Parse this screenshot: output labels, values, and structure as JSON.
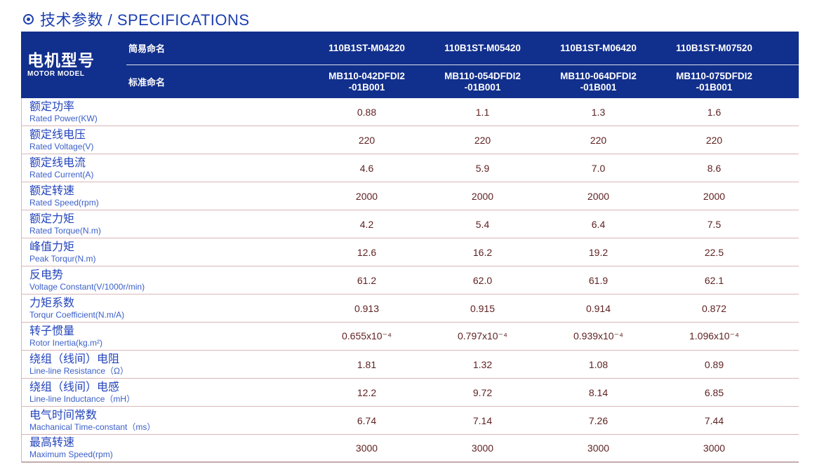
{
  "page": {
    "title": "技术参数 / SPECIFICATIONS"
  },
  "colors": {
    "header_background": "#112f8c",
    "title_blue": "#1d3fb0",
    "label_blue": "#2344bd",
    "value_maroon": "#5e1f1f",
    "divider_pink": "#d9b6b6"
  },
  "table": {
    "motor_model_cn": "电机型号",
    "motor_model_en": "MOTOR MODEL",
    "simple_name_label": "简易命名",
    "standard_name_label": "标准命名",
    "columns": [
      {
        "simple": "110B1ST-M04220",
        "std_line1": "MB110-042DFDI2",
        "std_line2": "-01B001"
      },
      {
        "simple": "110B1ST-M05420",
        "std_line1": "MB110-054DFDI2",
        "std_line2": "-01B001"
      },
      {
        "simple": "110B1ST-M06420",
        "std_line1": "MB110-064DFDI2",
        "std_line2": "-01B001"
      },
      {
        "simple": "110B1ST-M07520",
        "std_line1": "MB110-075DFDI2",
        "std_line2": "-01B001"
      }
    ],
    "rows": [
      {
        "cn": "额定功率",
        "en": "Rated Power(KW)",
        "values": [
          "0.88",
          "1.1",
          "1.3",
          "1.6"
        ]
      },
      {
        "cn": "额定线电压",
        "en": "Rated Voltage(V)",
        "values": [
          "220",
          "220",
          "220",
          "220"
        ]
      },
      {
        "cn": "额定线电流",
        "en": "Rated Current(A)",
        "values": [
          "4.6",
          "5.9",
          "7.0",
          "8.6"
        ]
      },
      {
        "cn": "额定转速",
        "en": "Rated Speed(rpm)",
        "values": [
          "2000",
          "2000",
          "2000",
          "2000"
        ]
      },
      {
        "cn": "额定力矩",
        "en": "Rated Torque(N.m)",
        "values": [
          "4.2",
          "5.4",
          "6.4",
          "7.5"
        ]
      },
      {
        "cn": "峰值力矩",
        "en": "Peak Torqur(N.m)",
        "values": [
          "12.6",
          "16.2",
          "19.2",
          "22.5"
        ]
      },
      {
        "cn": "反电势",
        "en": "Voltage Constant(V/1000r/min)",
        "values": [
          "61.2",
          "62.0",
          "61.9",
          "62.1"
        ]
      },
      {
        "cn": "力矩系数",
        "en": "Torqur Coefficient(N.m/A)",
        "values": [
          "0.913",
          "0.915",
          "0.914",
          "0.872"
        ]
      },
      {
        "cn": "转子惯量",
        "en": "Rotor Inertia(kg.m²)",
        "values": [
          "0.655x10⁻⁴",
          "0.797x10⁻⁴",
          "0.939x10⁻⁴",
          "1.096x10⁻⁴"
        ]
      },
      {
        "cn": "绕组（线间）电阻",
        "en": "Line-line Resistance（Ω）",
        "values": [
          "1.81",
          "1.32",
          "1.08",
          "0.89"
        ]
      },
      {
        "cn": "绕组（线间）电感",
        "en": "Line-line Inductance（mH）",
        "values": [
          "12.2",
          "9.72",
          "8.14",
          "6.85"
        ]
      },
      {
        "cn": "电气时间常数",
        "en": "Machanical Time-constant（ms）",
        "values": [
          "6.74",
          "7.14",
          "7.26",
          "7.44"
        ]
      },
      {
        "cn": "最高转速",
        "en": "Maximum Speed(rpm)",
        "values": [
          "3000",
          "3000",
          "3000",
          "3000"
        ]
      }
    ]
  }
}
